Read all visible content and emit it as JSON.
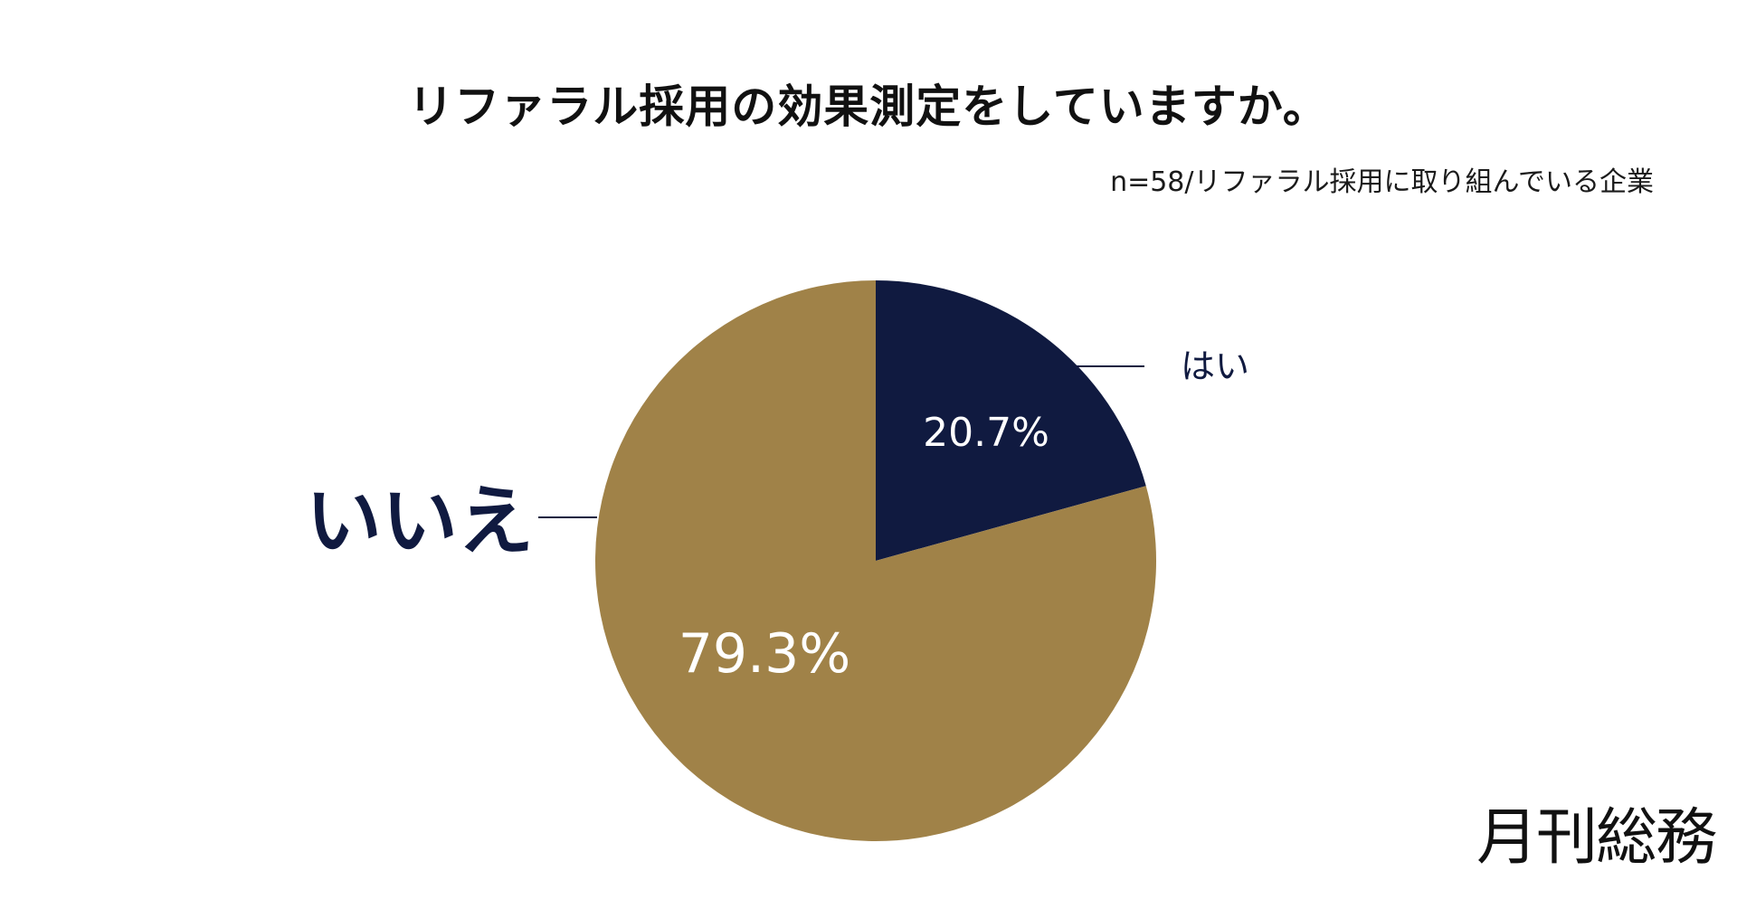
{
  "title": "リファラル採用の効果測定をしていますか。",
  "subtitle": "n=58/リファラル採用に取り組んでいる企業",
  "logo": "月刊総務",
  "chart_data": {
    "type": "pie",
    "title": "リファラル採用の効果測定をしていますか。",
    "subtitle": "n=58/リファラル採用に取り組んでいる企業",
    "slices": [
      {
        "label": "はい",
        "value": 20.7,
        "value_label": "20.7%",
        "color": "#101a40"
      },
      {
        "label": "いいえ",
        "value": 79.3,
        "value_label": "79.3%",
        "color": "#a08248"
      }
    ],
    "start_angle": "12 o'clock",
    "direction": "clockwise",
    "label_color": "#101a40",
    "value_label_color": "#ffffff"
  }
}
